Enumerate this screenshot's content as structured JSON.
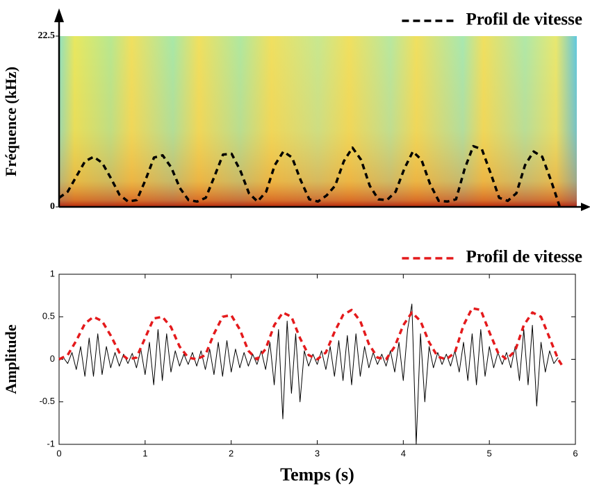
{
  "chart_data": [
    {
      "type": "line",
      "ylabel": "Fréquence (kHz)",
      "xlim": [
        0,
        6
      ],
      "ylim": [
        0,
        22.5
      ],
      "yticks": [
        0,
        22.5
      ],
      "legend": "top right",
      "series": [
        {
          "name": "Profil de vitesse",
          "color": "#000000",
          "style": "dashed",
          "x": [
            0,
            0.1,
            0.2,
            0.3,
            0.4,
            0.5,
            0.6,
            0.7,
            0.8,
            0.9,
            1.0,
            1.1,
            1.2,
            1.3,
            1.4,
            1.5,
            1.6,
            1.7,
            1.8,
            1.9,
            2.0,
            2.1,
            2.2,
            2.3,
            2.4,
            2.5,
            2.6,
            2.7,
            2.8,
            2.9,
            3.0,
            3.1,
            3.2,
            3.3,
            3.4,
            3.5,
            3.6,
            3.7,
            3.8,
            3.9,
            4.0,
            4.1,
            4.2,
            4.3,
            4.4,
            4.5,
            4.6,
            4.7,
            4.8,
            4.9,
            5.0,
            5.1,
            5.2,
            5.3,
            5.4,
            5.5,
            5.6,
            5.7,
            5.8
          ],
          "values": [
            1.2,
            2.0,
            4.0,
            6.0,
            6.6,
            5.8,
            3.8,
            1.6,
            0.7,
            0.9,
            3.5,
            6.5,
            6.8,
            5.2,
            2.5,
            0.9,
            0.7,
            1.2,
            4.0,
            6.9,
            7.0,
            4.8,
            1.8,
            0.7,
            2.0,
            5.5,
            7.3,
            6.5,
            3.5,
            1.0,
            0.7,
            1.5,
            2.8,
            6.0,
            7.8,
            6.2,
            2.8,
            1.0,
            0.9,
            2.0,
            5.0,
            7.3,
            6.2,
            3.0,
            0.8,
            0.7,
            1.0,
            5.0,
            8.0,
            7.6,
            4.5,
            1.2,
            0.8,
            1.8,
            5.5,
            7.3,
            6.6,
            3.5,
            0.1
          ]
        }
      ]
    },
    {
      "type": "line",
      "xlabel": "Temps (s)",
      "ylabel": "Amplitude",
      "xlim": [
        0,
        6
      ],
      "ylim": [
        -1,
        1
      ],
      "xticks": [
        0,
        1,
        2,
        3,
        4,
        5,
        6
      ],
      "yticks": [
        -1,
        -0.5,
        0,
        0.5,
        1
      ],
      "legend": "top right",
      "series": [
        {
          "color": "#000000",
          "style": "solid",
          "x": [
            0,
            0.05,
            0.1,
            0.15,
            0.2,
            0.25,
            0.3,
            0.35,
            0.4,
            0.45,
            0.5,
            0.55,
            0.6,
            0.65,
            0.7,
            0.75,
            0.8,
            0.85,
            0.9,
            0.95,
            1.0,
            1.05,
            1.1,
            1.15,
            1.2,
            1.25,
            1.3,
            1.35,
            1.4,
            1.45,
            1.5,
            1.55,
            1.6,
            1.65,
            1.7,
            1.75,
            1.8,
            1.85,
            1.9,
            1.95,
            2.0,
            2.05,
            2.1,
            2.15,
            2.2,
            2.25,
            2.3,
            2.35,
            2.4,
            2.45,
            2.5,
            2.55,
            2.6,
            2.65,
            2.7,
            2.75,
            2.8,
            2.85,
            2.9,
            2.95,
            3.0,
            3.05,
            3.1,
            3.15,
            3.2,
            3.25,
            3.3,
            3.35,
            3.4,
            3.45,
            3.5,
            3.55,
            3.6,
            3.65,
            3.7,
            3.75,
            3.8,
            3.85,
            3.9,
            3.95,
            4.0,
            4.05,
            4.1,
            4.15,
            4.2,
            4.25,
            4.3,
            4.35,
            4.4,
            4.45,
            4.5,
            4.55,
            4.6,
            4.65,
            4.7,
            4.75,
            4.8,
            4.85,
            4.9,
            4.95,
            5.0,
            5.05,
            5.1,
            5.15,
            5.2,
            5.25,
            5.3,
            5.35,
            5.4,
            5.45,
            5.5,
            5.55,
            5.6,
            5.65,
            5.7,
            5.75,
            5.8
          ],
          "values": [
            0,
            0.02,
            -0.05,
            0.08,
            -0.12,
            0.15,
            -0.2,
            0.25,
            -0.2,
            0.3,
            -0.18,
            0.15,
            -0.1,
            0.08,
            -0.08,
            0.06,
            -0.05,
            0.07,
            -0.1,
            0.12,
            -0.18,
            0.2,
            -0.3,
            0.35,
            -0.25,
            0.3,
            -0.15,
            0.1,
            -0.08,
            0.06,
            -0.06,
            0.08,
            -0.08,
            0.1,
            -0.12,
            0.12,
            -0.18,
            0.2,
            -0.2,
            0.22,
            -0.15,
            0.12,
            -0.1,
            0.08,
            -0.08,
            0.06,
            -0.06,
            0.1,
            -0.12,
            0.2,
            -0.3,
            0.35,
            -0.7,
            0.45,
            -0.4,
            0.3,
            -0.5,
            0.1,
            -0.08,
            0.06,
            -0.06,
            0.1,
            -0.12,
            0.15,
            -0.2,
            0.22,
            -0.25,
            0.28,
            -0.3,
            0.3,
            -0.2,
            0.15,
            -0.1,
            0.08,
            -0.06,
            0.06,
            -0.08,
            0.1,
            -0.15,
            0.2,
            -0.25,
            0.35,
            0.65,
            -1.0,
            0.3,
            -0.5,
            0.15,
            -0.1,
            0.08,
            -0.06,
            0.06,
            -0.08,
            0.1,
            -0.15,
            0.2,
            -0.25,
            0.3,
            -0.3,
            0.35,
            -0.2,
            0.15,
            -0.1,
            0.08,
            -0.06,
            0.08,
            -0.1,
            0.15,
            -0.25,
            0.35,
            -0.3,
            0.4,
            -0.55,
            0.2,
            -0.15,
            0.1,
            -0.05,
            0.02
          ]
        },
        {
          "name": "Profil de vitesse",
          "color": "#e41a1c",
          "style": "dashed",
          "x": [
            0,
            0.1,
            0.2,
            0.3,
            0.4,
            0.5,
            0.6,
            0.7,
            0.8,
            0.9,
            1.0,
            1.1,
            1.2,
            1.3,
            1.4,
            1.5,
            1.6,
            1.7,
            1.8,
            1.9,
            2.0,
            2.1,
            2.2,
            2.3,
            2.4,
            2.5,
            2.6,
            2.7,
            2.8,
            2.9,
            3.0,
            3.1,
            3.2,
            3.3,
            3.4,
            3.5,
            3.6,
            3.7,
            3.8,
            3.9,
            4.0,
            4.1,
            4.2,
            4.3,
            4.4,
            4.5,
            4.6,
            4.7,
            4.8,
            4.9,
            5.0,
            5.1,
            5.2,
            5.3,
            5.4,
            5.5,
            5.6,
            5.7,
            5.8,
            5.85
          ],
          "values": [
            0,
            0.05,
            0.22,
            0.42,
            0.5,
            0.45,
            0.28,
            0.08,
            0,
            0.02,
            0.25,
            0.48,
            0.5,
            0.38,
            0.15,
            0.02,
            0,
            0.05,
            0.3,
            0.5,
            0.52,
            0.35,
            0.1,
            0,
            0.12,
            0.4,
            0.55,
            0.5,
            0.25,
            0.05,
            0,
            0.08,
            0.32,
            0.52,
            0.58,
            0.45,
            0.18,
            0.02,
            0,
            0.15,
            0.4,
            0.55,
            0.45,
            0.2,
            0.03,
            0,
            0.08,
            0.4,
            0.6,
            0.58,
            0.32,
            0.08,
            0,
            0.1,
            0.4,
            0.55,
            0.5,
            0.25,
            0,
            -0.08
          ]
        }
      ]
    }
  ]
}
